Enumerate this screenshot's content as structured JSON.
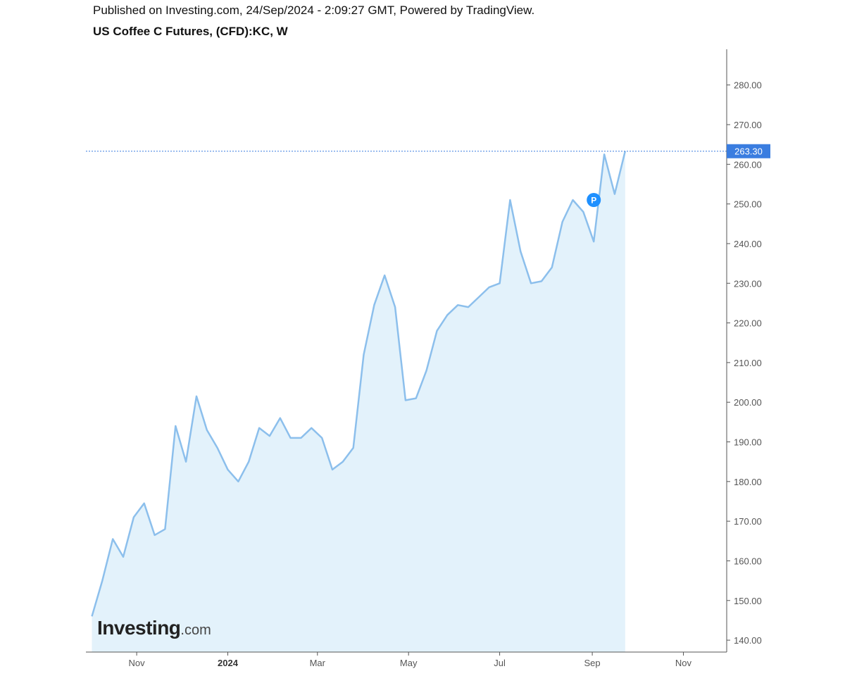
{
  "header": {
    "published": "Published on Investing.com, 24/Sep/2024 - 2:09:27 GMT, Powered by TradingView.",
    "symbol": "US Coffee C Futures, (CFD):KC, W"
  },
  "logo": {
    "main": "Investing",
    "tld": ".com"
  },
  "colors": {
    "line": "#8cbfec",
    "area": "#e3f2fb",
    "last_price_tag": "#3a7de0",
    "marker": "#1e90ff",
    "axis": "#555555"
  },
  "chart_data": {
    "type": "area",
    "x": [
      "2023-10-02",
      "2023-10-09",
      "2023-10-16",
      "2023-10-23",
      "2023-10-30",
      "2023-11-06",
      "2023-11-13",
      "2023-11-20",
      "2023-11-27",
      "2023-12-04",
      "2023-12-11",
      "2023-12-18",
      "2023-12-25",
      "2024-01-01",
      "2024-01-08",
      "2024-01-15",
      "2024-01-22",
      "2024-01-29",
      "2024-02-05",
      "2024-02-12",
      "2024-02-19",
      "2024-02-26",
      "2024-03-04",
      "2024-03-11",
      "2024-03-18",
      "2024-03-25",
      "2024-04-01",
      "2024-04-08",
      "2024-04-15",
      "2024-04-22",
      "2024-04-29",
      "2024-05-06",
      "2024-05-13",
      "2024-05-20",
      "2024-05-27",
      "2024-06-03",
      "2024-06-10",
      "2024-06-17",
      "2024-06-24",
      "2024-07-01",
      "2024-07-08",
      "2024-07-15",
      "2024-07-22",
      "2024-07-29",
      "2024-08-05",
      "2024-08-12",
      "2024-08-19",
      "2024-08-26",
      "2024-09-02",
      "2024-09-09",
      "2024-09-16",
      "2024-09-23"
    ],
    "series": [
      {
        "values": [
          146.0,
          155.0,
          165.5,
          161.0,
          171.0,
          174.5,
          166.5,
          168.0,
          194.0,
          185.0,
          201.5,
          193.0,
          188.5,
          183.0,
          180.0,
          185.0,
          193.5,
          191.5,
          196.0,
          191.0,
          191.0,
          193.5,
          191.0,
          183.0,
          185.0,
          188.5,
          212.0,
          224.5,
          232.0,
          224.0,
          200.5,
          201.0,
          208.0,
          218.0,
          222.0,
          224.5,
          224.0,
          226.5,
          229.0,
          230.0,
          251.0,
          238.0,
          230.0,
          230.5,
          234.0,
          245.5,
          251.0,
          248.0,
          240.5,
          262.5,
          252.5,
          263.3
        ]
      }
    ],
    "ylim": [
      137,
      289
    ],
    "xlim": [
      "2023-09-28",
      "2024-11-30"
    ],
    "y_ticks": [
      "140.00",
      "150.00",
      "160.00",
      "170.00",
      "180.00",
      "190.00",
      "200.00",
      "210.00",
      "220.00",
      "230.00",
      "240.00",
      "250.00",
      "260.00",
      "270.00",
      "280.00"
    ],
    "x_ticks": [
      {
        "label": "Nov",
        "date": "2023-11-01",
        "bold": false
      },
      {
        "label": "2024",
        "date": "2024-01-01",
        "bold": true
      },
      {
        "label": "Mar",
        "date": "2024-03-01",
        "bold": false
      },
      {
        "label": "May",
        "date": "2024-05-01",
        "bold": false
      },
      {
        "label": "Jul",
        "date": "2024-07-01",
        "bold": false
      },
      {
        "label": "Sep",
        "date": "2024-09-01",
        "bold": false
      },
      {
        "label": "Nov",
        "date": "2024-11-01",
        "bold": false
      }
    ],
    "last_price": 263.3,
    "last_price_label": "263.30",
    "marker": {
      "label": "P",
      "date": "2024-09-02",
      "value": 251.0
    },
    "grid": false
  }
}
